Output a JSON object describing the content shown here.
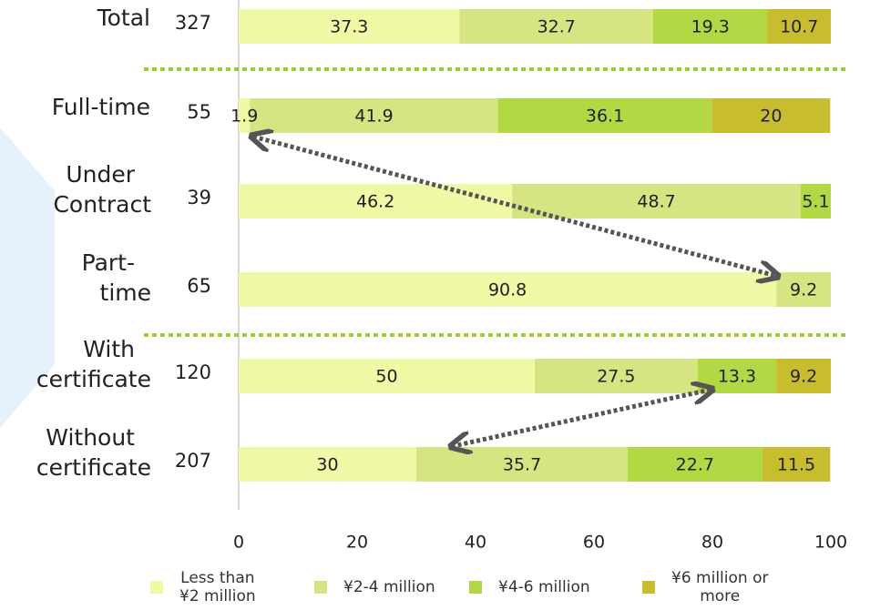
{
  "chart_data": {
    "type": "stacked-bar-horizontal",
    "xlim": [
      0,
      100
    ],
    "x_ticks": [
      "0",
      "20",
      "40",
      "60",
      "80",
      "100"
    ],
    "legend_position": "bottom",
    "series": [
      {
        "name": "Less than ¥2 million",
        "name_lines": [
          "Less than",
          "¥2 million"
        ],
        "color": "#f0f9a6"
      },
      {
        "name": "¥2-4 million",
        "name_lines": [
          "¥2-4 million"
        ],
        "color": "#d6e481"
      },
      {
        "name": "¥4-6 million",
        "name_lines": [
          "¥4-6 million"
        ],
        "color": "#b2d944"
      },
      {
        "name": "¥6 million or more",
        "name_lines": [
          "¥6 million or",
          "more"
        ],
        "color": "#c8bd2f"
      }
    ],
    "rows": [
      {
        "label": [
          "Total"
        ],
        "n": "327",
        "values": [
          37.3,
          32.7,
          19.3,
          10.7
        ],
        "value_labels": [
          "37.3",
          "32.7",
          "19.3",
          "10.7"
        ]
      },
      {
        "label": [
          "Full-time"
        ],
        "n": "55",
        "values": [
          1.9,
          41.9,
          36.1,
          20
        ],
        "value_labels": [
          "1.9",
          "41.9",
          "36.1",
          "20"
        ]
      },
      {
        "label": [
          "Under",
          "Contract"
        ],
        "n": "39",
        "values": [
          46.2,
          48.7,
          5.1,
          0
        ],
        "value_labels": [
          "46.2",
          "48.7",
          "5.1",
          ""
        ]
      },
      {
        "label": [
          "Part-",
          "time"
        ],
        "n": "65",
        "values": [
          90.8,
          9.2,
          0,
          0
        ],
        "value_labels": [
          "90.8",
          "9.2",
          "",
          ""
        ]
      },
      {
        "label": [
          "With",
          "certificate"
        ],
        "n": "120",
        "values": [
          50,
          27.5,
          13.3,
          9.2
        ],
        "value_labels": [
          "50",
          "27.5",
          "13.3",
          "9.2"
        ]
      },
      {
        "label": [
          "Without",
          "certificate"
        ],
        "n": "207",
        "values": [
          30,
          35.7,
          22.7,
          11.5
        ],
        "value_labels": [
          "30",
          "35.7",
          "22.7",
          "11.5"
        ]
      }
    ],
    "arrows": [
      {
        "from": {
          "row": 1,
          "x": 1.9
        },
        "to": {
          "row": 3,
          "x": 90.8
        }
      },
      {
        "from": {
          "row": 4,
          "x": 77
        },
        "to": {
          "row": 5,
          "x": 36
        }
      }
    ],
    "colors": {
      "divider": "#9acd32",
      "arrow": "#555555",
      "axis": "#cccccc",
      "chevron": "#e6f1fb"
    }
  }
}
